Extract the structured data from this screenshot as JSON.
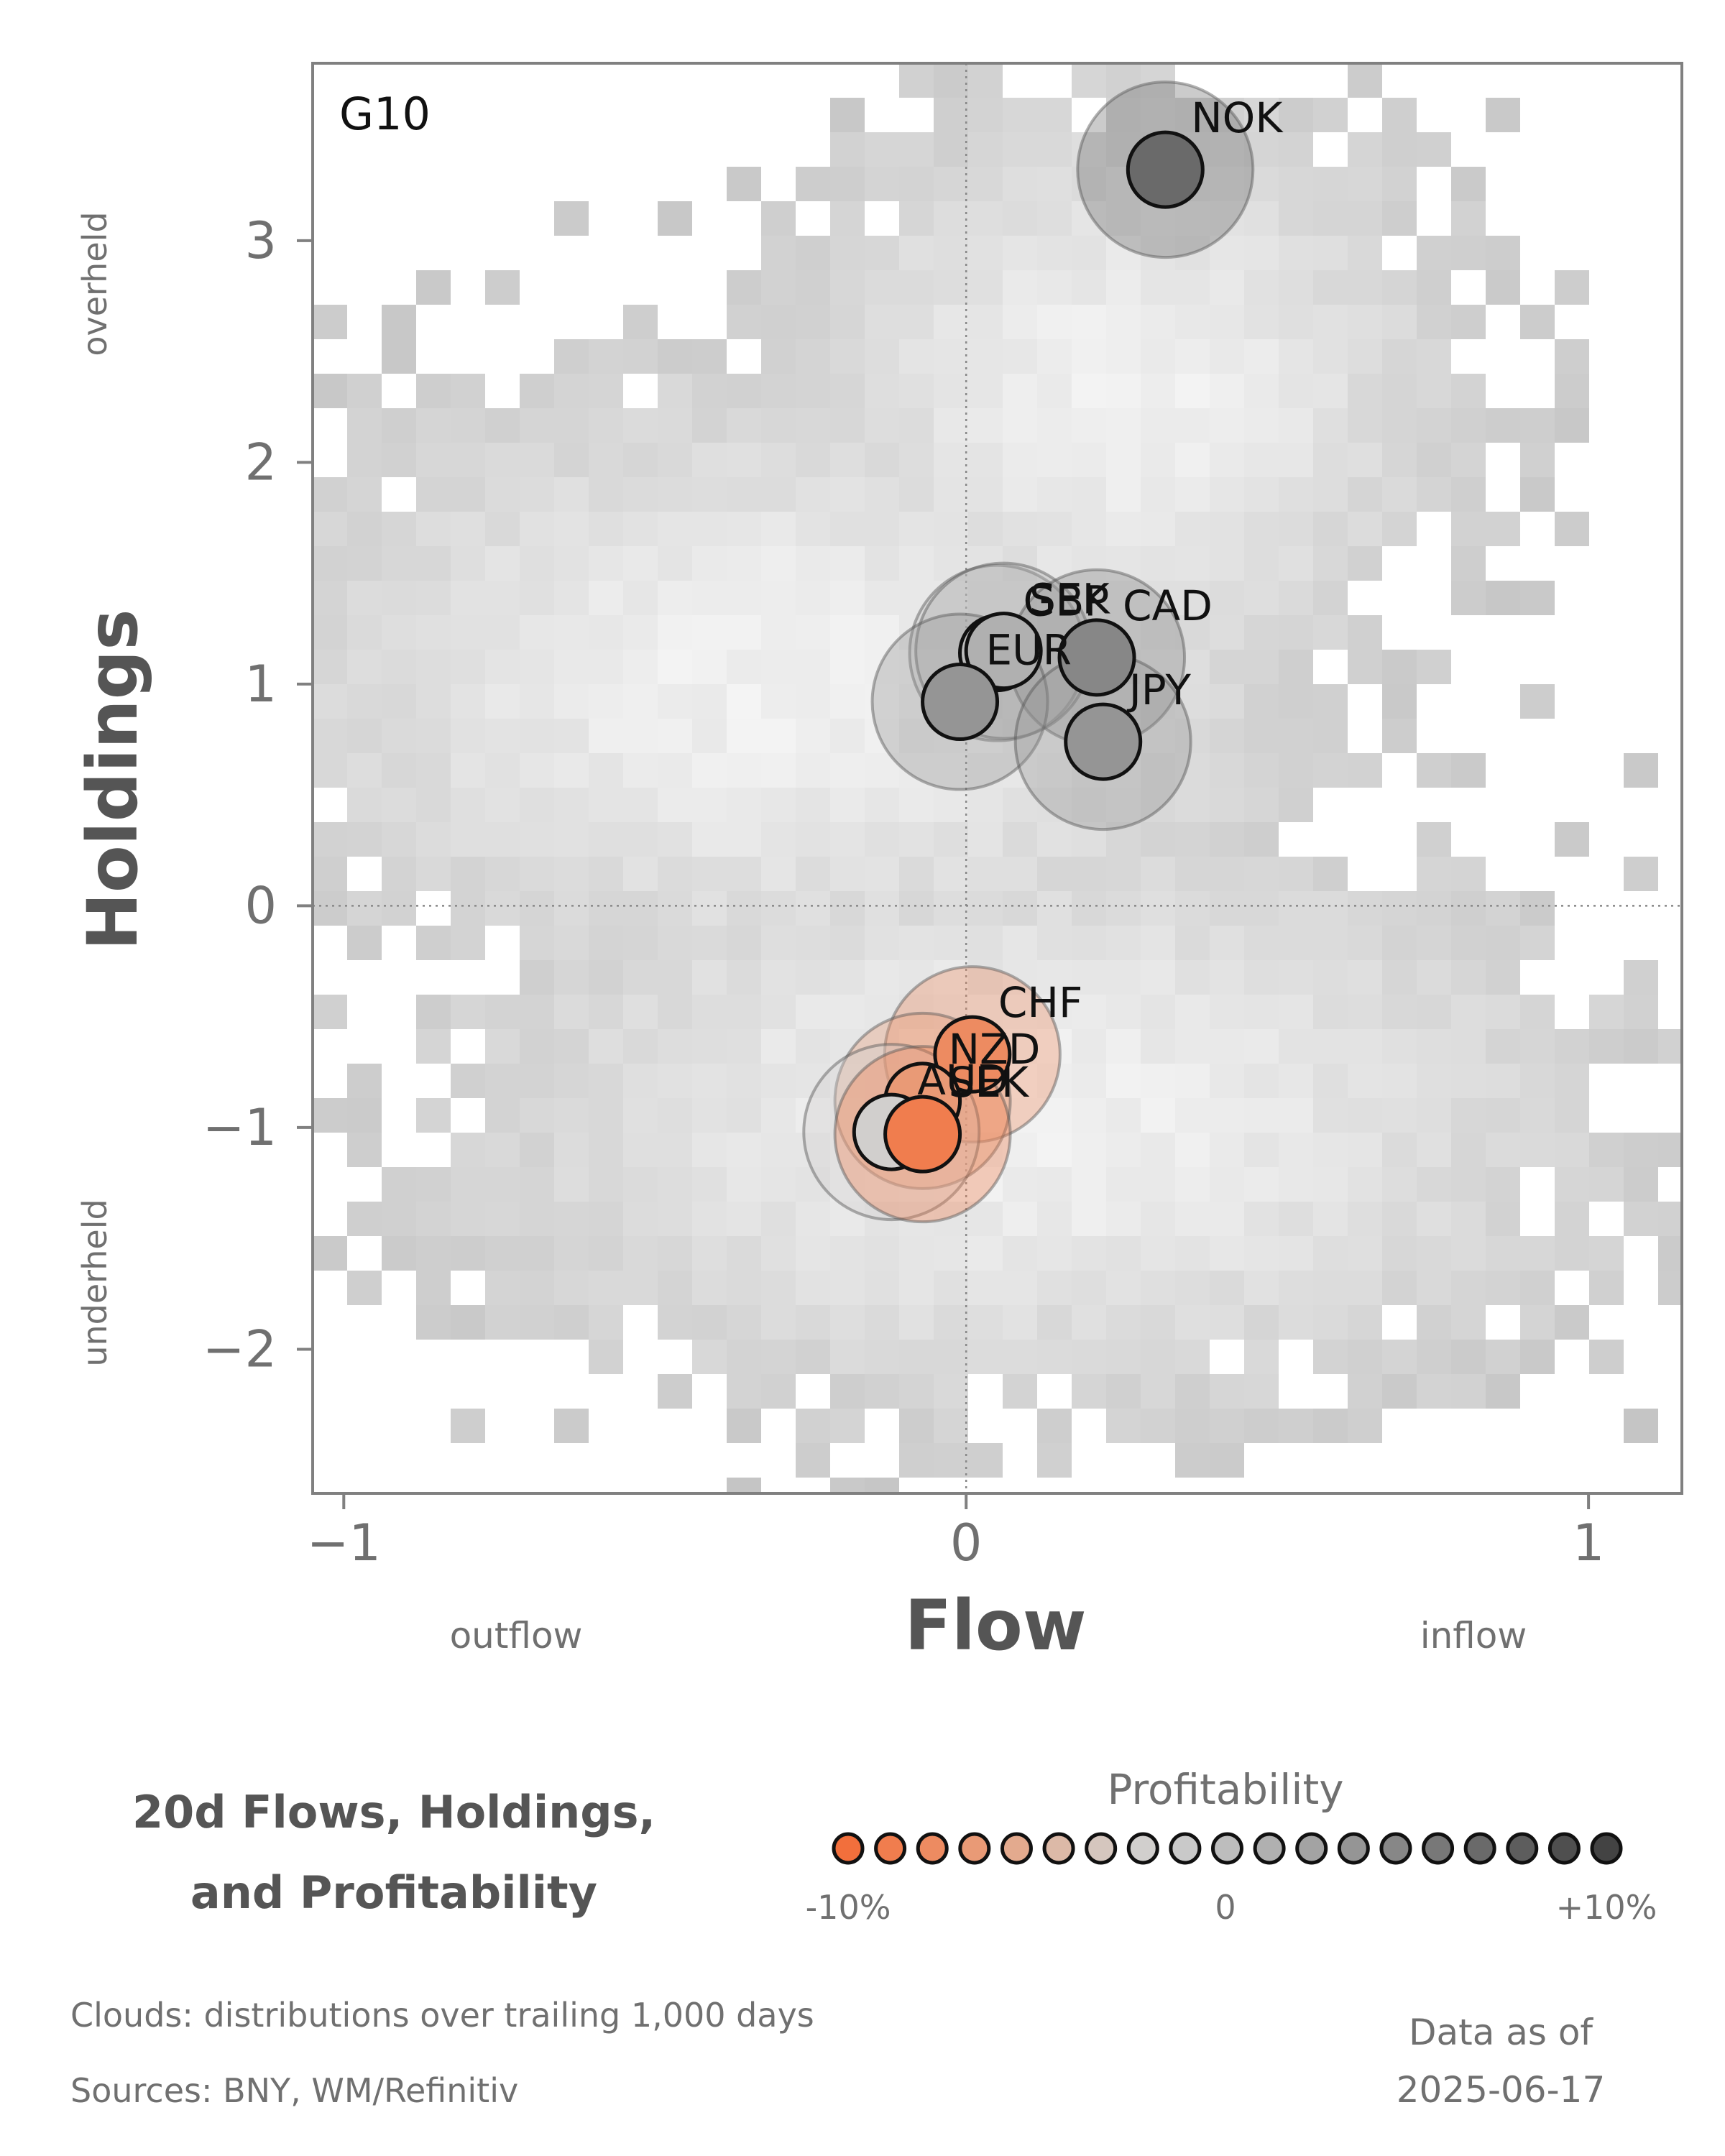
{
  "chart_data": {
    "type": "scatter",
    "panel_label": "G10",
    "xlabel": "Flow",
    "ylabel": "Holdings",
    "x_side_labels": {
      "left": "outflow",
      "right": "inflow"
    },
    "y_side_labels": {
      "top": "overheld",
      "bottom": "underheld"
    },
    "xlim": [
      -1.05,
      1.15
    ],
    "ylim": [
      -2.65,
      3.8
    ],
    "xticks": [
      -1,
      0,
      1
    ],
    "xtick_labels": [
      "−1",
      "0",
      "1"
    ],
    "yticks": [
      -2,
      -1,
      0,
      1,
      2,
      3
    ],
    "ytick_labels": [
      "−2",
      "−1",
      "0",
      "1",
      "2",
      "3"
    ],
    "reference_lines": {
      "x": 0,
      "y": 0,
      "style": "dotted"
    },
    "background": "2D histogram clouds (grey)",
    "points": [
      {
        "label": "NOK",
        "x": 0.32,
        "y": 3.32,
        "profitability": 7
      },
      {
        "label": "GBP",
        "x": 0.05,
        "y": 1.14,
        "profitability": 0
      },
      {
        "label": "SEK",
        "x": 0.06,
        "y": 1.15,
        "profitability": 1
      },
      {
        "label": "CAD",
        "x": 0.21,
        "y": 1.12,
        "profitability": 4
      },
      {
        "label": "EUR",
        "x": -0.01,
        "y": 0.92,
        "profitability": 3
      },
      {
        "label": "JPY",
        "x": 0.22,
        "y": 0.74,
        "profitability": 3
      },
      {
        "label": "CHF",
        "x": 0.01,
        "y": -0.67,
        "profitability": -8
      },
      {
        "label": "NZD",
        "x": -0.07,
        "y": -0.88,
        "profitability": -7
      },
      {
        "label": "AUD",
        "x": -0.12,
        "y": -1.02,
        "profitability": -2
      },
      {
        "label": "SEK",
        "x": -0.07,
        "y": -1.03,
        "profitability": -9
      }
    ]
  },
  "title_line1": "20d Flows, Holdings,",
  "title_line2": "and Profitability",
  "legend": {
    "title": "Profitability",
    "min_label": "-10%",
    "mid_label": "0",
    "max_label": "+10%",
    "colors": [
      "#f26f3c",
      "#f07d4e",
      "#ed8b61",
      "#e99a76",
      "#e3aa8e",
      "#dcb9a7",
      "#d5c6be",
      "#d1cfcd",
      "#c9c9c9",
      "#bdbdbd",
      "#b0b0b0",
      "#a3a3a3",
      "#959595",
      "#878787",
      "#787878",
      "#6a6a6a",
      "#5d5d5d",
      "#4f4f4f",
      "#434343"
    ]
  },
  "notes": {
    "clouds": "Clouds:  distributions over trailing 1,000 days",
    "sources": "Sources:  BNY, WM/Refinitiv"
  },
  "asof": {
    "label": "Data as of",
    "date": "2025-06-17"
  }
}
